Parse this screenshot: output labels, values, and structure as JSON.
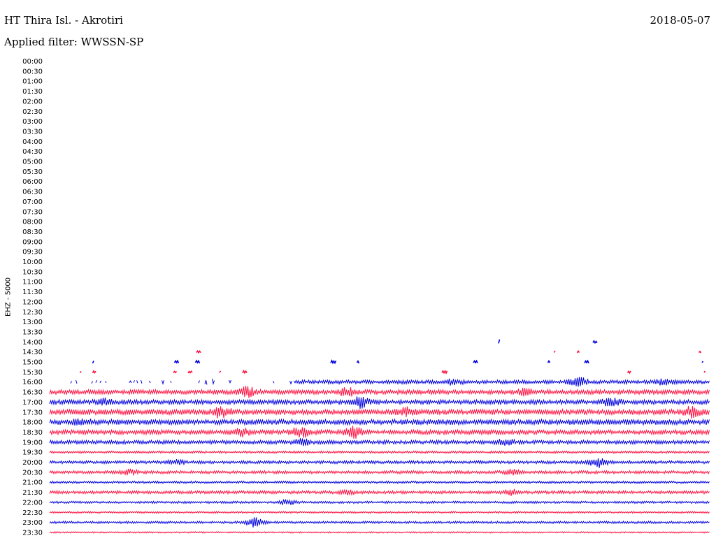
{
  "header": {
    "title": "HT Thira Isl. - Akrotiri",
    "date": "2018-05-07",
    "filter": "Applied filter: WWSSN-SP",
    "channel": "EHZ - 5000"
  },
  "colors": {
    "trace_a": "#0000dd",
    "trace_b": "#ff1040"
  },
  "chart_data": {
    "type": "line",
    "title": "HT Thira Isl. - Akrotiri",
    "subtitle": "Applied filter: WWSSN-SP",
    "ylabel": "EHZ - 5000",
    "ytick_labels": [
      "00:00",
      "00:30",
      "01:00",
      "01:30",
      "02:00",
      "02:30",
      "03:00",
      "03:30",
      "04:00",
      "04:30",
      "05:00",
      "05:30",
      "06:00",
      "06:30",
      "07:00",
      "07:30",
      "08:00",
      "08:30",
      "09:00",
      "09:30",
      "10:00",
      "10:30",
      "11:00",
      "11:30",
      "12:00",
      "12:30",
      "13:00",
      "13:30",
      "14:00",
      "14:30",
      "15:00",
      "15:30",
      "16:00",
      "16:30",
      "17:00",
      "17:30",
      "18:00",
      "18:30",
      "19:00",
      "19:30",
      "20:00",
      "20:30",
      "21:00",
      "21:30",
      "22:00",
      "22:30",
      "23:00",
      "23:30"
    ],
    "trace_colors_alternate": [
      "#0000dd",
      "#ff1040"
    ],
    "rows": [
      {
        "t": "14:00",
        "status": "gappy",
        "noise": 1.5,
        "density": 0.15,
        "bursts": [
          [
            0.69,
            4
          ]
        ],
        "start": 0.68
      },
      {
        "t": "14:30",
        "status": "gappy",
        "noise": 1.5,
        "density": 0.12,
        "bursts": []
      },
      {
        "t": "15:00",
        "status": "gappy",
        "noise": 1.8,
        "density": 0.25,
        "bursts": []
      },
      {
        "t": "15:30",
        "status": "gappy",
        "noise": 1.5,
        "density": 0.22,
        "bursts": []
      },
      {
        "t": "16:00",
        "status": "partial",
        "noise": 2.5,
        "solid_from": 0.37,
        "bursts": [
          [
            0.24,
            3
          ],
          [
            0.61,
            3
          ],
          [
            0.8,
            6
          ],
          [
            0.93,
            3
          ]
        ]
      },
      {
        "t": "16:30",
        "status": "continuous",
        "noise": 3,
        "bursts": [
          [
            0.3,
            6
          ],
          [
            0.45,
            4
          ],
          [
            0.72,
            3
          ]
        ]
      },
      {
        "t": "17:00",
        "status": "continuous",
        "noise": 3,
        "bursts": [
          [
            0.08,
            3
          ],
          [
            0.47,
            6
          ],
          [
            0.85,
            5
          ]
        ]
      },
      {
        "t": "17:30",
        "status": "continuous",
        "noise": 3.5,
        "bursts": [
          [
            0.26,
            7
          ],
          [
            0.54,
            4
          ],
          [
            0.97,
            6
          ]
        ]
      },
      {
        "t": "18:00",
        "status": "continuous",
        "noise": 3.5,
        "bursts": [
          [
            0.05,
            3
          ]
        ]
      },
      {
        "t": "18:30",
        "status": "continuous",
        "noise": 3,
        "bursts": [
          [
            0.29,
            4
          ],
          [
            0.38,
            7
          ],
          [
            0.46,
            6
          ]
        ]
      },
      {
        "t": "19:00",
        "status": "continuous",
        "noise": 2.5,
        "bursts": [
          [
            0.38,
            4
          ],
          [
            0.69,
            3
          ]
        ]
      },
      {
        "t": "19:30",
        "status": "continuous",
        "noise": 1.5,
        "bursts": []
      },
      {
        "t": "20:00",
        "status": "continuous",
        "noise": 2,
        "bursts": [
          [
            0.19,
            3
          ],
          [
            0.83,
            6
          ]
        ]
      },
      {
        "t": "20:30",
        "status": "continuous",
        "noise": 2,
        "bursts": [
          [
            0.12,
            3
          ],
          [
            0.7,
            3
          ]
        ]
      },
      {
        "t": "21:00",
        "status": "continuous",
        "noise": 1.5,
        "bursts": []
      },
      {
        "t": "21:30",
        "status": "continuous",
        "noise": 2,
        "bursts": [
          [
            0.45,
            2
          ],
          [
            0.7,
            3
          ]
        ]
      },
      {
        "t": "22:00",
        "status": "continuous",
        "noise": 1.5,
        "bursts": [
          [
            0.36,
            3
          ]
        ]
      },
      {
        "t": "22:30",
        "status": "continuous",
        "noise": 1.2,
        "bursts": []
      },
      {
        "t": "23:00",
        "status": "continuous",
        "noise": 1.5,
        "bursts": [
          [
            0.31,
            6
          ]
        ]
      },
      {
        "t": "23:30",
        "status": "continuous",
        "noise": 1,
        "bursts": []
      }
    ]
  }
}
